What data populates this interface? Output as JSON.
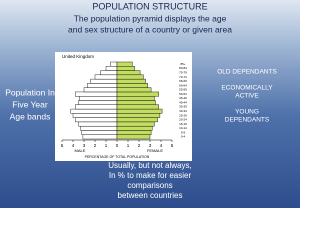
{
  "slide": {
    "title": "POPULATION STRUCTURE",
    "subtitle_lines": [
      "The population pyramid displays the age",
      "and sex structure of a country or given area"
    ],
    "right_labels": [
      [
        "OLD DEPENDANTS"
      ],
      [
        "ECONOMICALLY",
        "ACTIVE"
      ],
      [
        "YOUNG",
        "DEPENDANTS"
      ]
    ],
    "left_label_lines": [
      "Population In",
      "Five Year",
      "Age bands"
    ],
    "bottom_lines": [
      "Usually, but not always,",
      "In % to make for easier",
      "comparisons",
      "between countries"
    ]
  },
  "pyramid": {
    "type": "pyramid",
    "title": "United Kingdom",
    "male_label": "MALE",
    "female_label": "FEMALE",
    "xlabel": "PERCENTAGE OF TOTAL POPULATION",
    "categories": [
      "0-4",
      "5-9",
      "10-14",
      "15-19",
      "20-24",
      "25-29",
      "30-34",
      "35-39",
      "40-44",
      "45-49",
      "50-54",
      "55-59",
      "60-64",
      "65-69",
      "70-74",
      "75-79",
      "80-84",
      "85+"
    ],
    "male": [
      3.1,
      3.2,
      3.3,
      3.5,
      3.8,
      4.0,
      4.2,
      3.8,
      3.5,
      3.4,
      3.8,
      3.0,
      2.7,
      2.4,
      2.0,
      1.5,
      1.0,
      0.6
    ],
    "female": [
      3.0,
      3.1,
      3.2,
      3.4,
      3.7,
      3.9,
      4.1,
      3.8,
      3.5,
      3.4,
      3.8,
      3.1,
      2.8,
      2.6,
      2.4,
      2.1,
      1.6,
      1.4
    ],
    "male_color": "#ffffff",
    "female_color": "#c3dc62",
    "xlim": [
      -5,
      5
    ],
    "xticks": [
      {
        "value": -5,
        "label": "5"
      },
      {
        "value": -4,
        "label": "4"
      },
      {
        "value": -3,
        "label": "3"
      },
      {
        "value": -2,
        "label": "2"
      },
      {
        "value": -1,
        "label": "1"
      },
      0,
      1,
      2,
      3,
      4,
      5
    ]
  }
}
